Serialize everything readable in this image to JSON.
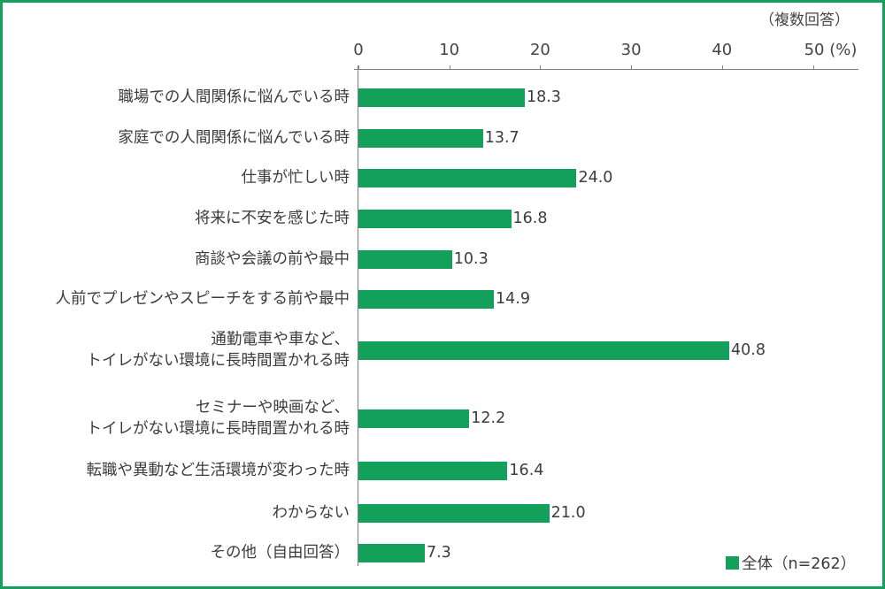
{
  "chart_data": {
    "type": "bar",
    "orientation": "horizontal",
    "title": "",
    "note": "（複数回答）",
    "xlabel": "(%)",
    "ylabel": "",
    "xlim": [
      0,
      50
    ],
    "x_ticks": [
      "0",
      "10",
      "20",
      "30",
      "40",
      "50 (%)"
    ],
    "grid": false,
    "legend_position": "bottom-right",
    "categories": [
      "職場での人間関係に悩んでいる時",
      "家庭での人間関係に悩んでいる時",
      "仕事が忙しい時",
      "将来に不安を感じた時",
      "商談や会議の前や最中",
      "人前でプレゼンやスピーチをする前や最中",
      "通勤電車や車など、\nトイレがない環境に長時間置かれる時",
      "セミナーや映画など、\nトイレがない環境に長時間置かれる時",
      "転職や異動など生活環境が変わった時",
      "わからない",
      "その他（自由回答）"
    ],
    "series": [
      {
        "name": "全体（n=262）",
        "color": "#12a05a",
        "values": [
          18.3,
          13.7,
          24.0,
          16.8,
          10.3,
          14.9,
          40.8,
          12.2,
          16.4,
          21.0,
          7.3
        ]
      }
    ]
  },
  "header": {
    "note": "（複数回答）"
  },
  "axis": {
    "ticks": [
      {
        "label": "0",
        "value": 0
      },
      {
        "label": "10",
        "value": 10
      },
      {
        "label": "20",
        "value": 20
      },
      {
        "label": "30",
        "value": 30
      },
      {
        "label": "40",
        "value": 40
      },
      {
        "label": "50 (%)",
        "value": 50
      }
    ]
  },
  "rows": [
    {
      "label_lines": [
        "職場での人間関係に悩んでいる時"
      ],
      "value_text": "18.3",
      "value": 18.3
    },
    {
      "label_lines": [
        "家庭での人間関係に悩んでいる時"
      ],
      "value_text": "13.7",
      "value": 13.7
    },
    {
      "label_lines": [
        "仕事が忙しい時"
      ],
      "value_text": "24.0",
      "value": 24.0
    },
    {
      "label_lines": [
        "将来に不安を感じた時"
      ],
      "value_text": "16.8",
      "value": 16.8
    },
    {
      "label_lines": [
        "商談や会議の前や最中"
      ],
      "value_text": "10.3",
      "value": 10.3
    },
    {
      "label_lines": [
        "人前でプレゼンやスピーチをする前や最中"
      ],
      "value_text": "14.9",
      "value": 14.9
    },
    {
      "label_lines": [
        "通勤電車や車など、",
        "トイレがない環境に長時間置かれる時"
      ],
      "value_text": "40.8",
      "value": 40.8
    },
    {
      "label_lines": [
        "セミナーや映画など、",
        "トイレがない環境に長時間置かれる時"
      ],
      "value_text": "12.2",
      "value": 12.2
    },
    {
      "label_lines": [
        "転職や異動など生活環境が変わった時"
      ],
      "value_text": "16.4",
      "value": 16.4
    },
    {
      "label_lines": [
        "わからない"
      ],
      "value_text": "21.0",
      "value": 21.0
    },
    {
      "label_lines": [
        "その他（自由回答）"
      ],
      "value_text": "7.3",
      "value": 7.3
    }
  ],
  "legend": {
    "label": "全体（n=262）",
    "color": "#12a05a"
  }
}
